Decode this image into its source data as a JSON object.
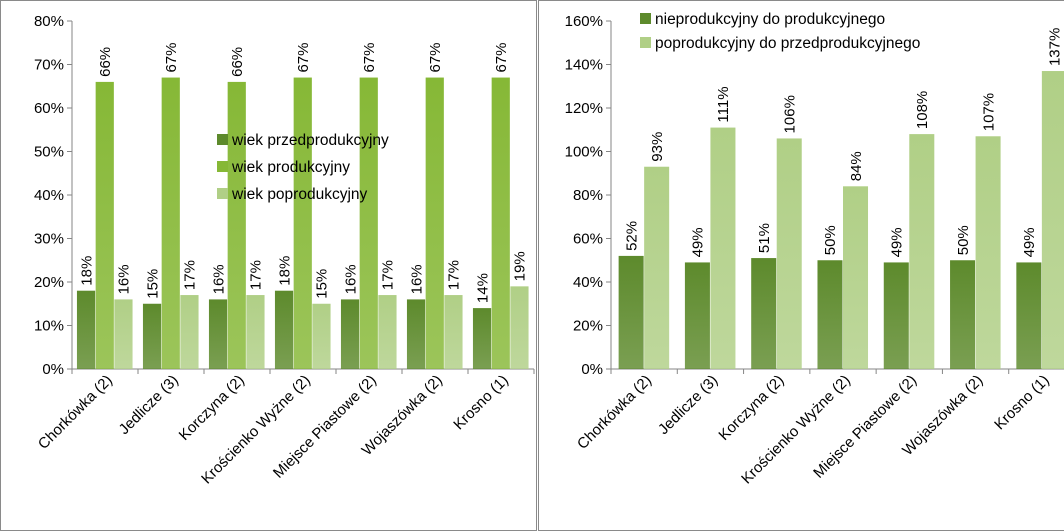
{
  "colors": {
    "dark_green": "#5d8a2c",
    "mid_green": "#86b836",
    "light_green": "#b0cf86",
    "axis": "#868686"
  },
  "chart_data": [
    {
      "type": "bar",
      "categories": [
        "Chorkówka (2)",
        "Jedlicze (3)",
        "Korczyna (2)",
        "Krościenko Wyżne (2)",
        "Miejsce Piastowe (2)",
        "Wojaszówka (2)",
        "Krosno (1)"
      ],
      "series": [
        {
          "name": "wiek przedprodukcyjny",
          "values": [
            18,
            15,
            16,
            18,
            16,
            16,
            14
          ],
          "labels": [
            "18%",
            "15%",
            "16%",
            "18%",
            "16%",
            "16%",
            "14%"
          ],
          "color": "#5d8a2c"
        },
        {
          "name": "wiek produkcyjny",
          "values": [
            66,
            67,
            66,
            67,
            67,
            67,
            67
          ],
          "labels": [
            "66%",
            "67%",
            "66%",
            "67%",
            "67%",
            "67%",
            "67%"
          ],
          "color": "#86b836"
        },
        {
          "name": "wiek poprodukcyjny",
          "values": [
            16,
            17,
            17,
            15,
            17,
            17,
            19
          ],
          "labels": [
            "16%",
            "17%",
            "17%",
            "15%",
            "17%",
            "17%",
            "19%"
          ],
          "color": "#b0cf86"
        }
      ],
      "ylim": [
        0,
        80
      ],
      "yticks": [
        0,
        10,
        20,
        30,
        40,
        50,
        60,
        70,
        80
      ],
      "ytick_labels": [
        "0%",
        "10%",
        "20%",
        "30%",
        "40%",
        "50%",
        "60%",
        "70%",
        "80%"
      ],
      "legend_position": "center-right",
      "grid": false
    },
    {
      "type": "bar",
      "categories": [
        "Chorkówka (2)",
        "Jedlicze (3)",
        "Korczyna (2)",
        "Krościenko Wyżne (2)",
        "Miejsce Piastowe (2)",
        "Wojaszówka (2)",
        "Krosno (1)"
      ],
      "series": [
        {
          "name": "nieprodukcyjny do produkcyjnego",
          "values": [
            52,
            49,
            51,
            50,
            49,
            50,
            49
          ],
          "labels": [
            "52%",
            "49%",
            "51%",
            "50%",
            "49%",
            "50%",
            "49%"
          ],
          "color": "#5d8a2c"
        },
        {
          "name": "poprodukcyjny do przedprodukcyjnego",
          "values": [
            93,
            111,
            106,
            84,
            108,
            107,
            137
          ],
          "labels": [
            "93%",
            "111%",
            "106%",
            "84%",
            "108%",
            "107%",
            "137%"
          ],
          "color": "#b0cf86"
        }
      ],
      "ylim": [
        0,
        160
      ],
      "yticks": [
        0,
        20,
        40,
        60,
        80,
        100,
        120,
        140,
        160
      ],
      "ytick_labels": [
        "0%",
        "20%",
        "40%",
        "60%",
        "80%",
        "100%",
        "120%",
        "140%",
        "160%"
      ],
      "legend_position": "top",
      "grid": false
    }
  ]
}
